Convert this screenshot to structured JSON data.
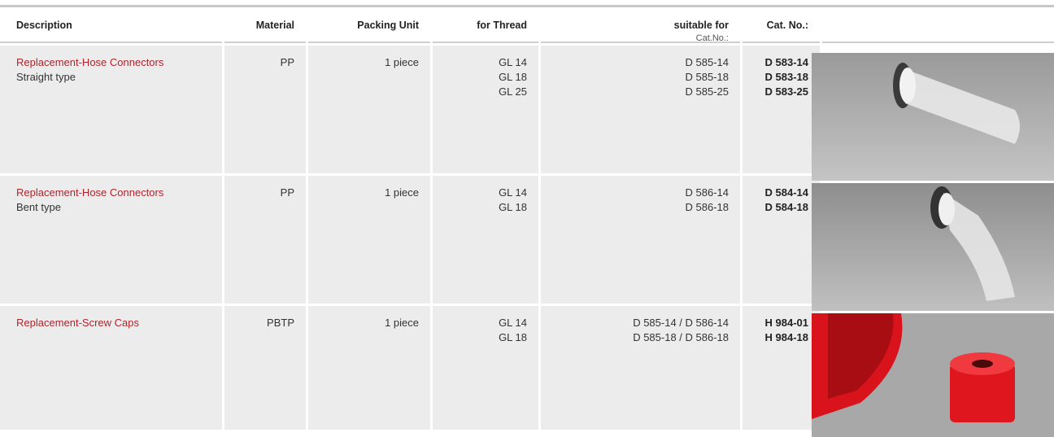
{
  "table": {
    "header": [
      "Description",
      "Material",
      "Packing Unit",
      "for Thread",
      "suitable for",
      "Cat. No.:"
    ],
    "header_sub": "Cat.No.:",
    "rows": [
      {
        "description": "Replacement-Hose Connectors",
        "type": "Straight type",
        "material": "PP",
        "packing_unit": "1 piece",
        "for_thread": [
          "GL 14",
          "GL 18",
          "GL 25"
        ],
        "suitable_for": [
          "D 585-14",
          "D 585-18",
          "D 585-25"
        ],
        "cat_no": [
          "D 583-14",
          "D 583-18",
          "D 583-25"
        ]
      },
      {
        "description": "Replacement-Hose Connectors",
        "type": "Bent type",
        "material": "PP",
        "packing_unit": "1 piece",
        "for_thread": [
          "GL 14",
          "GL 18"
        ],
        "suitable_for": [
          "D  586-14",
          "D  586-18"
        ],
        "cat_no": [
          "D 584-14",
          "D 584-18"
        ]
      },
      {
        "description": "Replacement-Screw Caps",
        "material": "PBTP",
        "packing_unit": "1 piece",
        "for_thread": [
          "GL 14",
          "GL 18"
        ],
        "suitable_for": [
          "D 585-14 / D 586-14",
          "D 585-18 / D 586-18"
        ],
        "cat_no": [
          "H 984-01",
          "H 984-18"
        ]
      }
    ]
  }
}
